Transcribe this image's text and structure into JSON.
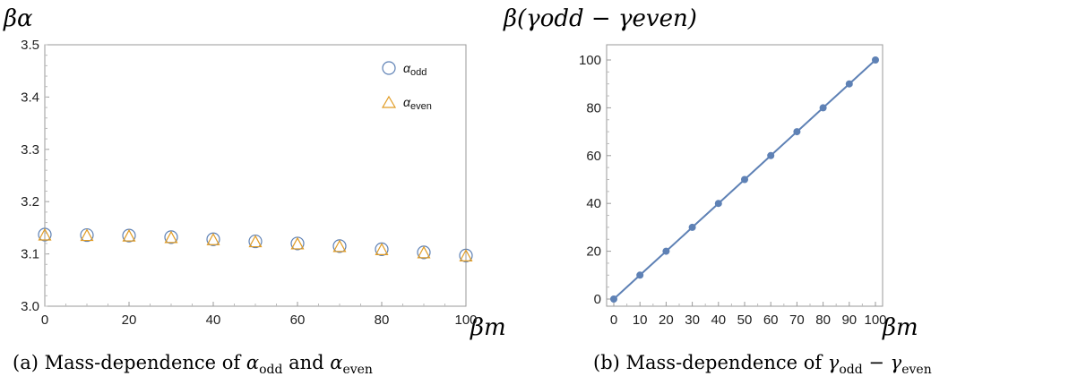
{
  "colors": {
    "odd": "#5e81b5",
    "even": "#e19c24",
    "line": "#5e81b5",
    "axis": "#9a9a9a"
  },
  "figure": {
    "caption_a": "(a) Mass-dependence of αodd and αeven",
    "caption_b": "(b) Mass-dependence of γodd − γeven"
  },
  "chart_data": [
    {
      "type": "scatter",
      "ylabel": "βα",
      "xlabel": "βm",
      "xlim": [
        0,
        100
      ],
      "ylim": [
        3.0,
        3.5
      ],
      "x_ticks": [
        "0",
        "20",
        "40",
        "60",
        "80",
        "100"
      ],
      "y_ticks": [
        "3.0",
        "3.1",
        "3.2",
        "3.3",
        "3.4",
        "3.5"
      ],
      "legend_position": "top-right",
      "x": [
        0,
        10,
        20,
        30,
        40,
        50,
        60,
        70,
        80,
        90,
        100
      ],
      "series": [
        {
          "name": "αodd",
          "marker": "circle",
          "values": [
            3.137,
            3.136,
            3.135,
            3.132,
            3.128,
            3.124,
            3.12,
            3.115,
            3.109,
            3.103,
            3.097
          ]
        },
        {
          "name": "αeven",
          "marker": "triangle",
          "values": [
            3.137,
            3.136,
            3.135,
            3.132,
            3.128,
            3.124,
            3.12,
            3.115,
            3.109,
            3.103,
            3.097
          ]
        }
      ]
    },
    {
      "type": "line",
      "ylabel": "β(γodd − γeven)",
      "xlabel": "βm",
      "xlim": [
        0,
        100
      ],
      "ylim": [
        0,
        100
      ],
      "x_ticks": [
        "0",
        "10",
        "20",
        "30",
        "40",
        "50",
        "60",
        "70",
        "80",
        "90",
        "100"
      ],
      "y_ticks": [
        "0",
        "20",
        "40",
        "60",
        "80",
        "100"
      ],
      "x": [
        0,
        10,
        20,
        30,
        40,
        50,
        60,
        70,
        80,
        90,
        100
      ],
      "series": [
        {
          "values": [
            0,
            10,
            20,
            30,
            40,
            50,
            60,
            70,
            80,
            90,
            100
          ]
        }
      ]
    }
  ]
}
